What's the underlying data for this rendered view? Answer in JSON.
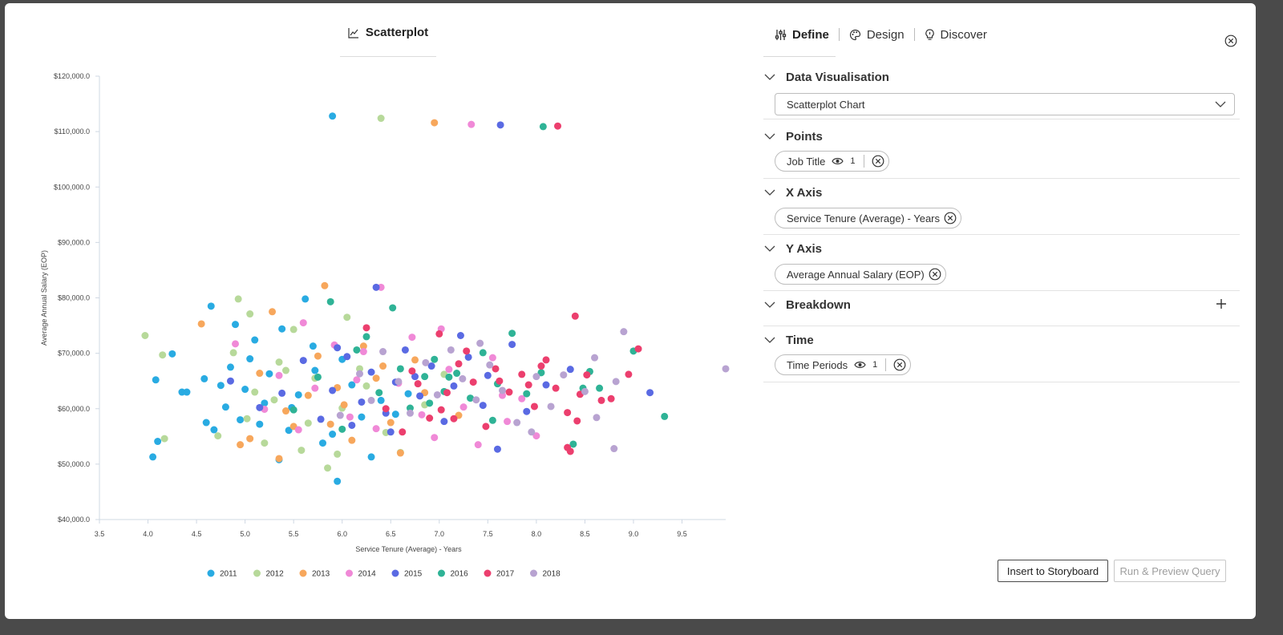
{
  "chart_tab": {
    "label": "Scatterplot"
  },
  "tabs": [
    {
      "label": "Define",
      "active": true
    },
    {
      "label": "Design",
      "active": false
    },
    {
      "label": "Discover",
      "active": false
    }
  ],
  "sections": {
    "data_visualisation": {
      "title": "Data Visualisation",
      "selected": "Scatterplot Chart"
    },
    "points": {
      "title": "Points",
      "pill": {
        "label": "Job Title",
        "count": "1"
      }
    },
    "x_axis": {
      "title": "X Axis",
      "pill": {
        "label": "Service Tenure (Average) - Years"
      }
    },
    "y_axis": {
      "title": "Y Axis",
      "pill": {
        "label": "Average Annual Salary (EOP)"
      }
    },
    "breakdown": {
      "title": "Breakdown"
    },
    "time": {
      "title": "Time",
      "pill": {
        "label": "Time Periods",
        "count": "1"
      }
    }
  },
  "buttons": {
    "insert": "Insert to Storyboard",
    "run": "Run & Preview Query"
  },
  "chart_data": {
    "type": "scatter",
    "xlabel": "Service Tenure (Average) - Years",
    "ylabel": "Average Annual Salary (EOP)",
    "xlim": [
      3.5,
      9.95
    ],
    "ylim": [
      40000,
      120000
    ],
    "xticks": [
      3.5,
      4.0,
      4.5,
      5.0,
      5.5,
      6.0,
      6.5,
      7.0,
      7.5,
      8.0,
      8.5,
      9.0,
      9.5
    ],
    "xtick_labels": [
      "3.5",
      "4.0",
      "4.5",
      "5.0",
      "5.5",
      "6.0",
      "6.5",
      "7.0",
      "7.5",
      "8.0",
      "8.5",
      "9.0",
      "9.5"
    ],
    "yticks": [
      40000,
      50000,
      60000,
      70000,
      80000,
      90000,
      100000,
      110000,
      120000
    ],
    "ytick_labels": [
      "$40,000.0",
      "$50,000.0",
      "$60,000.0",
      "$70,000.0",
      "$80,000.0",
      "$90,000.0",
      "$100,000.0",
      "$110,000.0",
      "$120,000.0"
    ],
    "legend_position": "bottom",
    "grid": false,
    "series": [
      {
        "name": "2011",
        "color": "#29abe2",
        "points": [
          [
            5.9,
            112800
          ],
          [
            4.05,
            51300
          ],
          [
            4.1,
            54100
          ],
          [
            4.08,
            65200
          ],
          [
            4.25,
            69900
          ],
          [
            4.35,
            63000
          ],
          [
            4.4,
            63000
          ],
          [
            4.6,
            57500
          ],
          [
            4.65,
            78500
          ],
          [
            4.68,
            56200
          ],
          [
            4.75,
            64200
          ],
          [
            4.8,
            60300
          ],
          [
            4.85,
            67500
          ],
          [
            4.9,
            75200
          ],
          [
            4.95,
            58000
          ],
          [
            5.0,
            63500
          ],
          [
            5.05,
            69000
          ],
          [
            5.1,
            72400
          ],
          [
            5.2,
            61000
          ],
          [
            5.25,
            66300
          ],
          [
            5.35,
            50800
          ],
          [
            5.38,
            74400
          ],
          [
            5.45,
            56100
          ],
          [
            5.55,
            62500
          ],
          [
            5.62,
            79800
          ],
          [
            5.7,
            71300
          ],
          [
            5.8,
            53800
          ],
          [
            5.9,
            55400
          ],
          [
            5.95,
            46900
          ],
          [
            6.0,
            68900
          ],
          [
            6.1,
            64300
          ],
          [
            6.3,
            51300
          ],
          [
            6.4,
            61500
          ],
          [
            6.55,
            59000
          ],
          [
            4.58,
            65400
          ],
          [
            5.15,
            57200
          ],
          [
            5.48,
            60200
          ],
          [
            5.72,
            66900
          ],
          [
            6.2,
            58500
          ],
          [
            6.68,
            62700
          ]
        ]
      },
      {
        "name": "2012",
        "color": "#b7d99a",
        "points": [
          [
            6.4,
            112400
          ],
          [
            3.97,
            73200
          ],
          [
            4.15,
            69700
          ],
          [
            4.17,
            54600
          ],
          [
            4.72,
            55100
          ],
          [
            4.93,
            79800
          ],
          [
            5.05,
            77100
          ],
          [
            5.1,
            63000
          ],
          [
            5.2,
            53800
          ],
          [
            5.35,
            68400
          ],
          [
            5.5,
            74300
          ],
          [
            5.58,
            52500
          ],
          [
            5.72,
            65500
          ],
          [
            5.85,
            49300
          ],
          [
            5.95,
            51800
          ],
          [
            6.05,
            76500
          ],
          [
            6.18,
            67200
          ],
          [
            6.45,
            55700
          ],
          [
            6.6,
            52100
          ],
          [
            6.85,
            60700
          ],
          [
            5.02,
            58200
          ],
          [
            5.3,
            61600
          ],
          [
            5.65,
            57400
          ],
          [
            6.25,
            64100
          ],
          [
            7.05,
            66200
          ],
          [
            4.88,
            70100
          ],
          [
            5.42,
            66900
          ],
          [
            6.0,
            60100
          ]
        ]
      },
      {
        "name": "2013",
        "color": "#f7a75c",
        "points": [
          [
            6.95,
            111600
          ],
          [
            4.55,
            75300
          ],
          [
            4.95,
            53500
          ],
          [
            5.05,
            54600
          ],
          [
            5.28,
            77500
          ],
          [
            5.35,
            51000
          ],
          [
            5.5,
            56800
          ],
          [
            5.65,
            62400
          ],
          [
            5.82,
            82200
          ],
          [
            5.95,
            63800
          ],
          [
            6.1,
            54300
          ],
          [
            6.35,
            65500
          ],
          [
            6.5,
            57500
          ],
          [
            6.6,
            52000
          ],
          [
            6.75,
            68800
          ],
          [
            5.15,
            66400
          ],
          [
            5.42,
            59600
          ],
          [
            5.75,
            69500
          ],
          [
            6.02,
            60700
          ],
          [
            6.22,
            71300
          ],
          [
            6.85,
            62900
          ],
          [
            7.2,
            58800
          ],
          [
            5.88,
            57200
          ],
          [
            6.42,
            67700
          ]
        ]
      },
      {
        "name": "2014",
        "color": "#f089d7",
        "points": [
          [
            7.33,
            111300
          ],
          [
            6.4,
            81900
          ],
          [
            4.9,
            71700
          ],
          [
            5.2,
            59900
          ],
          [
            5.35,
            66000
          ],
          [
            5.6,
            75500
          ],
          [
            5.72,
            63700
          ],
          [
            5.92,
            71500
          ],
          [
            6.08,
            58500
          ],
          [
            6.22,
            70300
          ],
          [
            6.35,
            56400
          ],
          [
            6.58,
            64600
          ],
          [
            6.72,
            72900
          ],
          [
            6.95,
            54800
          ],
          [
            7.1,
            67100
          ],
          [
            7.25,
            60300
          ],
          [
            7.4,
            53500
          ],
          [
            7.55,
            69200
          ],
          [
            7.7,
            57700
          ],
          [
            7.85,
            61800
          ],
          [
            8.0,
            55100
          ],
          [
            5.55,
            56200
          ],
          [
            6.15,
            65200
          ],
          [
            6.82,
            58900
          ],
          [
            7.02,
            74400
          ],
          [
            7.65,
            62400
          ]
        ]
      },
      {
        "name": "2015",
        "color": "#5a6ae3",
        "points": [
          [
            7.63,
            111200
          ],
          [
            6.35,
            81900
          ],
          [
            4.85,
            65000
          ],
          [
            5.15,
            60200
          ],
          [
            5.38,
            62800
          ],
          [
            5.6,
            68700
          ],
          [
            5.78,
            58100
          ],
          [
            5.9,
            63300
          ],
          [
            6.05,
            69400
          ],
          [
            6.2,
            61200
          ],
          [
            6.3,
            66600
          ],
          [
            6.45,
            59200
          ],
          [
            6.55,
            64800
          ],
          [
            6.65,
            70600
          ],
          [
            6.8,
            62300
          ],
          [
            6.92,
            67700
          ],
          [
            7.05,
            57700
          ],
          [
            7.15,
            64100
          ],
          [
            7.3,
            69300
          ],
          [
            7.45,
            60600
          ],
          [
            7.6,
            52700
          ],
          [
            7.75,
            71600
          ],
          [
            7.9,
            59500
          ],
          [
            8.1,
            64300
          ],
          [
            8.35,
            67100
          ],
          [
            9.17,
            62900
          ],
          [
            5.95,
            71000
          ],
          [
            6.5,
            55800
          ],
          [
            7.22,
            73200
          ],
          [
            7.5,
            66000
          ],
          [
            6.1,
            57000
          ],
          [
            6.75,
            65800
          ]
        ]
      },
      {
        "name": "2016",
        "color": "#2fb396",
        "points": [
          [
            8.07,
            110900
          ],
          [
            6.0,
            56300
          ],
          [
            5.88,
            79300
          ],
          [
            6.52,
            78200
          ],
          [
            5.75,
            65700
          ],
          [
            6.15,
            70600
          ],
          [
            6.38,
            62900
          ],
          [
            6.6,
            67200
          ],
          [
            6.7,
            60100
          ],
          [
            6.85,
            65800
          ],
          [
            6.95,
            68900
          ],
          [
            7.05,
            63100
          ],
          [
            7.18,
            66400
          ],
          [
            7.32,
            61900
          ],
          [
            7.45,
            70100
          ],
          [
            7.6,
            64500
          ],
          [
            7.75,
            73600
          ],
          [
            7.9,
            62700
          ],
          [
            8.05,
            66500
          ],
          [
            8.38,
            53600
          ],
          [
            8.48,
            63700
          ],
          [
            8.55,
            66700
          ],
          [
            8.65,
            63700
          ],
          [
            9.0,
            70400
          ],
          [
            9.32,
            58600
          ],
          [
            6.9,
            61000
          ],
          [
            7.1,
            65700
          ],
          [
            7.55,
            57900
          ],
          [
            5.5,
            59800
          ],
          [
            6.25,
            73000
          ]
        ]
      },
      {
        "name": "2017",
        "color": "#ec3f6e",
        "points": [
          [
            8.22,
            111000
          ],
          [
            6.25,
            74600
          ],
          [
            6.45,
            60000
          ],
          [
            6.62,
            55800
          ],
          [
            6.78,
            64500
          ],
          [
            6.9,
            58300
          ],
          [
            7.0,
            73500
          ],
          [
            7.08,
            62900
          ],
          [
            7.2,
            68100
          ],
          [
            7.35,
            64800
          ],
          [
            7.48,
            56800
          ],
          [
            7.58,
            67200
          ],
          [
            7.72,
            63000
          ],
          [
            7.85,
            66200
          ],
          [
            7.98,
            60400
          ],
          [
            8.1,
            68800
          ],
          [
            8.2,
            63700
          ],
          [
            8.32,
            59300
          ],
          [
            8.35,
            52300
          ],
          [
            8.32,
            53000
          ],
          [
            8.42,
            57800
          ],
          [
            8.45,
            62600
          ],
          [
            8.52,
            66100
          ],
          [
            8.67,
            61500
          ],
          [
            8.77,
            61800
          ],
          [
            8.95,
            66200
          ],
          [
            9.05,
            70800
          ],
          [
            8.4,
            76700
          ],
          [
            7.02,
            59800
          ],
          [
            7.28,
            70400
          ],
          [
            7.62,
            65000
          ],
          [
            7.92,
            64300
          ],
          [
            8.05,
            67700
          ],
          [
            6.72,
            66800
          ],
          [
            7.15,
            58200
          ]
        ]
      },
      {
        "name": "2018",
        "color": "#b8a3d1",
        "points": [
          [
            9.95,
            67200
          ],
          [
            8.9,
            73900
          ],
          [
            8.6,
            69200
          ],
          [
            8.82,
            64900
          ],
          [
            8.8,
            52800
          ],
          [
            8.28,
            66100
          ],
          [
            8.15,
            60400
          ],
          [
            7.8,
            57500
          ],
          [
            7.65,
            63300
          ],
          [
            7.52,
            67900
          ],
          [
            7.38,
            61600
          ],
          [
            7.24,
            65400
          ],
          [
            7.12,
            70600
          ],
          [
            6.98,
            62500
          ],
          [
            6.86,
            68300
          ],
          [
            6.7,
            59200
          ],
          [
            6.58,
            64900
          ],
          [
            6.42,
            70300
          ],
          [
            6.3,
            61500
          ],
          [
            6.18,
            66300
          ],
          [
            5.98,
            58800
          ],
          [
            8.5,
            63100
          ],
          [
            8.62,
            58400
          ],
          [
            8.0,
            65800
          ],
          [
            7.95,
            55800
          ],
          [
            7.42,
            71800
          ]
        ]
      }
    ]
  }
}
